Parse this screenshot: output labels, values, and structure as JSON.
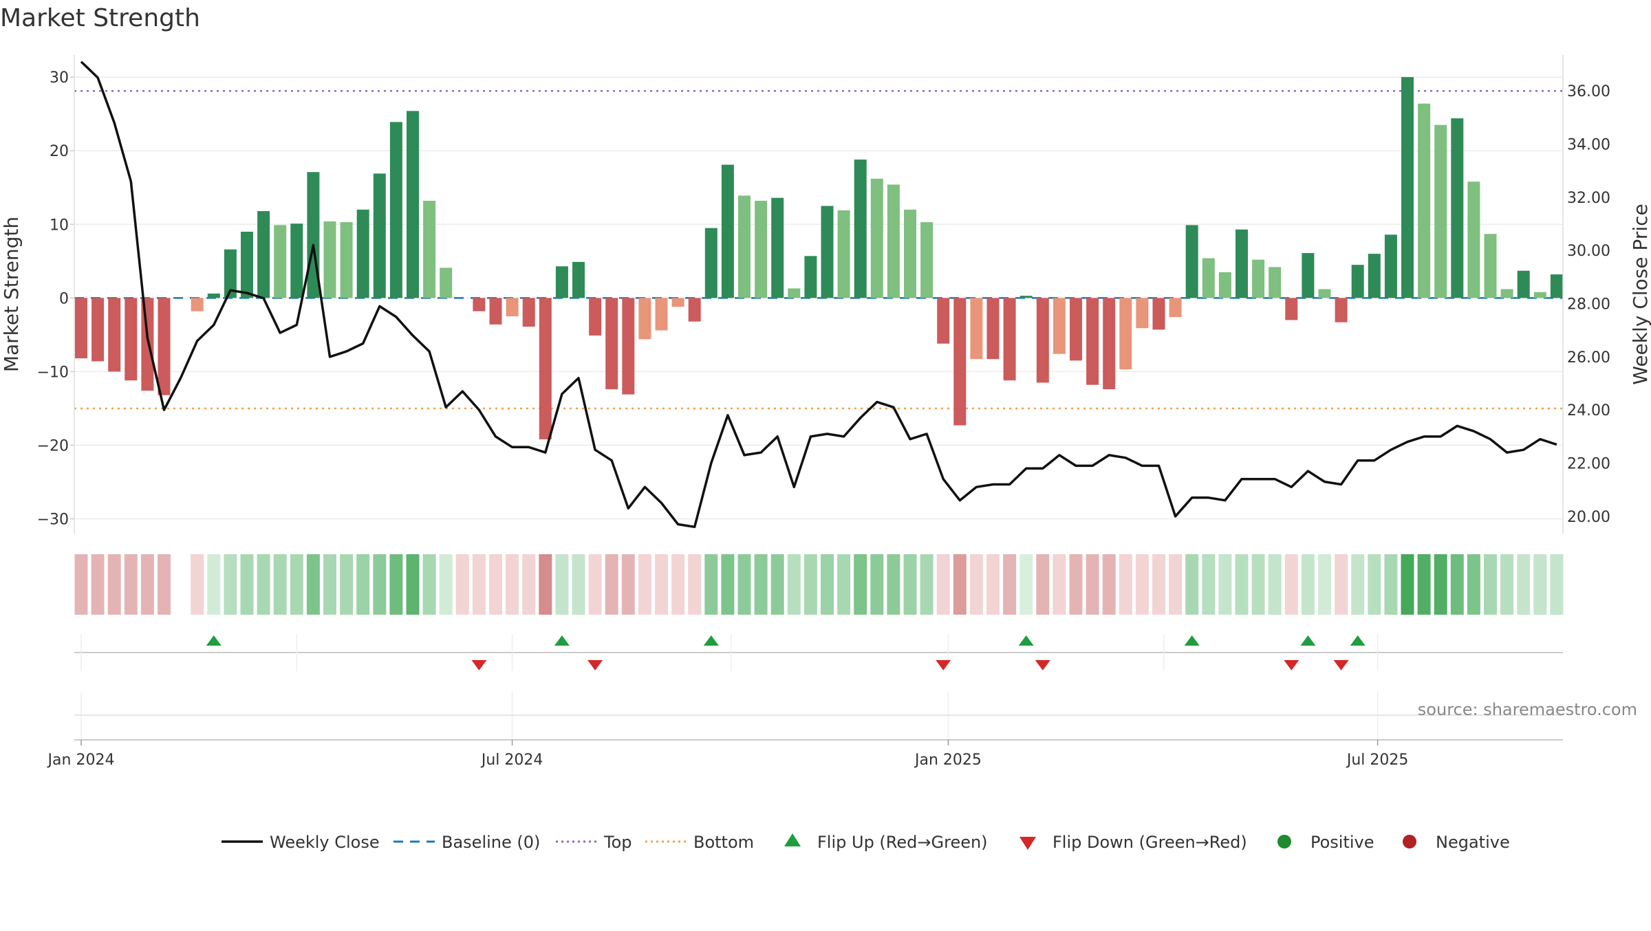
{
  "chart_data": {
    "type": "bar",
    "title": "Market Strength",
    "ylabel_left": "Market Strength",
    "ylabel_right": "Weekly Close Price",
    "source_text": "source: sharemaestro.com",
    "y_left_range": [
      -32,
      33
    ],
    "y_left_ticks": [
      30,
      20,
      10,
      0,
      -10,
      -20,
      -30
    ],
    "y_left_tick_labels": [
      "30",
      "20",
      "10",
      "0",
      "−10",
      "−20",
      "−30"
    ],
    "y_right_range": [
      19.35,
      37.35
    ],
    "y_right_ticks": [
      36,
      34,
      32,
      30,
      28,
      26,
      24,
      22,
      20
    ],
    "y_right_tick_labels": [
      "36.00",
      "34.00",
      "32.00",
      "30.00",
      "28.00",
      "26.00",
      "24.00",
      "22.00",
      "20.00"
    ],
    "x_tick_labels": [
      "Jan 2024",
      "Jul 2024",
      "Jan 2025",
      "Jul 2025"
    ],
    "x_tick_weeks": [
      0,
      26,
      52.3,
      78.2
    ],
    "top_line": 26.2,
    "bottom_line": -15.0,
    "baseline": 0,
    "weeks": 90,
    "strength": [
      -8.2,
      -8.6,
      -10,
      -11.2,
      -12.6,
      -13.2,
      0,
      -1.8,
      0.6,
      6.6,
      9,
      11.8,
      9.9,
      10.1,
      17.1,
      10.4,
      10.3,
      12,
      16.9,
      23.9,
      25.4,
      13.2,
      4.1,
      0,
      -1.8,
      -3.6,
      -2.5,
      -3.9,
      -19.2,
      4.3,
      4.9,
      -5.1,
      -12.4,
      -13.1,
      -5.6,
      -4.4,
      -1.2,
      -3.2,
      9.5,
      18.1,
      13.9,
      13.2,
      13.6,
      1.3,
      5.7,
      12.5,
      11.9,
      18.8,
      16.2,
      15.4,
      12,
      10.3,
      -6.2,
      -17.3,
      -8.3,
      -8.3,
      -11.2,
      0.3,
      -11.5,
      -7.6,
      -8.5,
      -11.8,
      -12.4,
      -9.7,
      -4.1,
      -4.3,
      -2.6,
      9.9,
      5.4,
      3.5,
      9.3,
      5.2,
      4.2,
      -3,
      6.1,
      1.2,
      -3.3,
      4.5,
      6,
      8.6,
      30,
      26.4,
      23.5,
      24.4,
      15.8,
      8.7,
      1.2,
      3.7,
      0.8,
      3.2
    ],
    "bar_colors": [
      "#cc5b5b",
      "#cc5b5b",
      "#cc5b5b",
      "#cc5b5b",
      "#cc5b5b",
      "#cc5b5b",
      "#e8957a",
      "#e8957a",
      "#2e8b57",
      "#2e8b57",
      "#2e8b57",
      "#2e8b57",
      "#7fbf7f",
      "#2e8b57",
      "#2e8b57",
      "#7fbf7f",
      "#7fbf7f",
      "#2e8b57",
      "#2e8b57",
      "#2e8b57",
      "#2e8b57",
      "#7fbf7f",
      "#7fbf7f",
      "#e8957a",
      "#cc5b5b",
      "#cc5b5b",
      "#e8957a",
      "#cc5b5b",
      "#cc5b5b",
      "#2e8b57",
      "#2e8b57",
      "#cc5b5b",
      "#cc5b5b",
      "#cc5b5b",
      "#e8957a",
      "#e8957a",
      "#e8957a",
      "#cc5b5b",
      "#2e8b57",
      "#2e8b57",
      "#7fbf7f",
      "#7fbf7f",
      "#2e8b57",
      "#7fbf7f",
      "#2e8b57",
      "#2e8b57",
      "#7fbf7f",
      "#2e8b57",
      "#7fbf7f",
      "#7fbf7f",
      "#7fbf7f",
      "#7fbf7f",
      "#cc5b5b",
      "#cc5b5b",
      "#e8957a",
      "#cc5b5b",
      "#cc5b5b",
      "#2e8b57",
      "#cc5b5b",
      "#e8957a",
      "#cc5b5b",
      "#cc5b5b",
      "#cc5b5b",
      "#e8957a",
      "#e8957a",
      "#cc5b5b",
      "#e8957a",
      "#2e8b57",
      "#7fbf7f",
      "#7fbf7f",
      "#2e8b57",
      "#7fbf7f",
      "#7fbf7f",
      "#cc5b5b",
      "#2e8b57",
      "#7fbf7f",
      "#cc5b5b",
      "#2e8b57",
      "#2e8b57",
      "#2e8b57",
      "#2e8b57",
      "#7fbf7f",
      "#7fbf7f",
      "#2e8b57",
      "#7fbf7f",
      "#7fbf7f",
      "#7fbf7f",
      "#2e8b57",
      "#7fbf7f",
      "#2e8b57"
    ],
    "heat_colors": [
      "#e4b4b4",
      "#e4b4b4",
      "#e4b4b4",
      "#e4b4b4",
      "#e4b4b4",
      "#e4b4b4",
      null,
      "#f2d4d4",
      "#d2ebd7",
      "#b6dfbf",
      "#a8d8b2",
      "#a8d8b2",
      "#a8d8b2",
      "#a8d8b2",
      "#7dc48b",
      "#a8d8b2",
      "#a8d8b2",
      "#9bd2a6",
      "#8ccb99",
      "#6fbd7e",
      "#5eb36e",
      "#a8d8b2",
      "#d2ebd7",
      "#f2d4d4",
      "#f2d4d4",
      "#f2d4d4",
      "#f2d4d4",
      "#f2d4d4",
      "#d48c8c",
      "#c4e5cb",
      "#c4e5cb",
      "#f2d4d4",
      "#e4b4b4",
      "#e4b4b4",
      "#f2d4d4",
      "#f2d4d4",
      "#f2d4d4",
      "#f2d4d4",
      "#8ccb99",
      "#7dc48b",
      "#8ccb99",
      "#8ccb99",
      "#8ccb99",
      "#b6dfbf",
      "#a8d8b2",
      "#9bd2a6",
      "#a8d8b2",
      "#7dc48b",
      "#8ccb99",
      "#8ccb99",
      "#9bd2a6",
      "#a8d8b2",
      "#f2d4d4",
      "#dc9c9c",
      "#f2d4d4",
      "#f2d4d4",
      "#e4b4b4",
      "#d9efdd",
      "#e4b4b4",
      "#f2d4d4",
      "#e4b4b4",
      "#e4b4b4",
      "#e4b4b4",
      "#f2d4d4",
      "#f2d4d4",
      "#f2d4d4",
      "#f2d4d4",
      "#a8d8b2",
      "#b6dfbf",
      "#c4e5cb",
      "#b6dfbf",
      "#b6dfbf",
      "#c4e5cb",
      "#f2d4d4",
      "#c4e5cb",
      "#d2ebd7",
      "#f2d4d4",
      "#c4e5cb",
      "#b6dfbf",
      "#a8d8b2",
      "#46a85a",
      "#52ae64",
      "#52ae64",
      "#6fbd7e",
      "#7dc48b",
      "#a8d8b2",
      "#b6dfbf",
      "#c4e5cb",
      "#c4e5cb",
      "#c4e5cb"
    ],
    "close": [
      37.1,
      36.5,
      34.8,
      32.6,
      26.7,
      24.0,
      25.2,
      26.6,
      27.2,
      28.5,
      28.4,
      28.2,
      26.9,
      27.2,
      30.2,
      26.0,
      26.2,
      26.5,
      27.9,
      27.5,
      26.8,
      26.2,
      24.1,
      24.7,
      24.0,
      23.0,
      22.6,
      22.6,
      22.4,
      24.6,
      25.2,
      22.5,
      22.1,
      20.3,
      21.1,
      20.5,
      19.7,
      19.6,
      22.0,
      23.8,
      22.3,
      22.4,
      23.0,
      21.1,
      23.0,
      23.1,
      23.0,
      23.7,
      24.3,
      24.1,
      22.9,
      23.1,
      21.4,
      20.6,
      21.1,
      21.2,
      21.2,
      21.8,
      21.8,
      22.3,
      21.9,
      21.9,
      22.3,
      22.2,
      21.9,
      21.9,
      20.0,
      20.7,
      20.7,
      20.6,
      21.4,
      21.4,
      21.4,
      21.1,
      21.7,
      21.3,
      21.2,
      22.1,
      22.1,
      22.5,
      22.8,
      23.0,
      23.0,
      23.4,
      23.2,
      22.9,
      22.4,
      22.5,
      22.9,
      22.7
    ],
    "flip_up_weeks": [
      8,
      29,
      38,
      57,
      67,
      74,
      77
    ],
    "flip_down_weeks": [
      24,
      31,
      52,
      58,
      73,
      76
    ],
    "colors": {
      "positive_dark": "#2e8b57",
      "positive_light": "#7fbf7f",
      "negative_dark": "#cc5b5b",
      "negative_light": "#e8957a",
      "close_line": "#111111",
      "baseline": "#1f77b4",
      "top": "#9467bd",
      "bottom": "#f0a050",
      "flip_up": "#1f9e3e",
      "flip_down": "#d62728",
      "legend_positive": "#1f8a2e",
      "legend_negative": "#b22222"
    },
    "legend": [
      {
        "label": "Weekly Close",
        "kind": "line"
      },
      {
        "label": "Baseline (0)",
        "kind": "dash"
      },
      {
        "label": "Top",
        "kind": "dot-purple"
      },
      {
        "label": "Bottom",
        "kind": "dot-orange"
      },
      {
        "label": "Flip Up (Red→Green)",
        "kind": "tri-up"
      },
      {
        "label": "Flip Down (Green→Red)",
        "kind": "tri-down"
      },
      {
        "label": "Positive",
        "kind": "circle-pos"
      },
      {
        "label": "Negative",
        "kind": "circle-neg"
      }
    ]
  }
}
